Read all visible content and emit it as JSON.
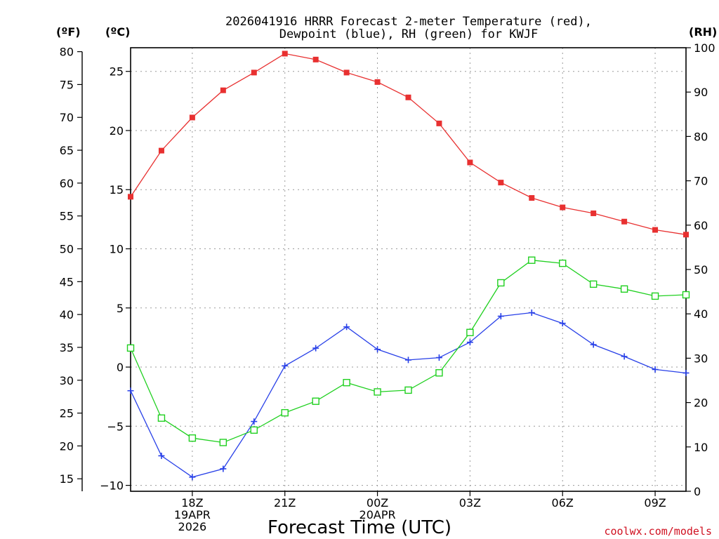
{
  "chart_data": {
    "type": "line",
    "title_line1": "2026041916 HRRR Forecast 2-meter Temperature (red),",
    "title_line2": "Dewpoint (blue), RH (green) for KWJF",
    "units": {
      "fahrenheit": "(ºF)",
      "celsius": "(ºC)",
      "rh": "(RH)"
    },
    "xlabel": "Forecast Time (UTC)",
    "credit": "coolwx.com/models",
    "hours": [
      16,
      17,
      18,
      19,
      20,
      21,
      22,
      23,
      24,
      25,
      26,
      27,
      28,
      29,
      30,
      31,
      32,
      33,
      34
    ],
    "x_ticks": [
      {
        "hour": 18,
        "lines": [
          "18Z",
          "19APR",
          "2026"
        ]
      },
      {
        "hour": 21,
        "lines": [
          "21Z"
        ]
      },
      {
        "hour": 24,
        "lines": [
          "00Z",
          "20APR"
        ]
      },
      {
        "hour": 27,
        "lines": [
          "03Z"
        ]
      },
      {
        "hour": 30,
        "lines": [
          "06Z"
        ]
      },
      {
        "hour": 33,
        "lines": [
          "09Z"
        ]
      }
    ],
    "celsius_range": [
      -10.5,
      27.0
    ],
    "celsius_ticks": [
      -10,
      -5,
      0,
      5,
      10,
      15,
      20,
      25
    ],
    "fahrenheit_ticks": [
      15,
      20,
      25,
      30,
      35,
      40,
      45,
      50,
      55,
      60,
      65,
      70,
      75,
      80
    ],
    "rh_range": [
      0,
      100
    ],
    "rh_ticks": [
      0,
      10,
      20,
      30,
      40,
      50,
      60,
      70,
      80,
      90,
      100
    ],
    "series": [
      {
        "name": "Temperature",
        "axis": "celsius",
        "color": "#e83030",
        "marker": "filled-square",
        "values": [
          14.4,
          18.3,
          21.1,
          23.4,
          24.9,
          26.5,
          26.0,
          24.9,
          24.1,
          22.8,
          20.6,
          17.3,
          15.6,
          14.3,
          13.5,
          13.0,
          12.3,
          11.6,
          11.2
        ]
      },
      {
        "name": "Dewpoint",
        "axis": "celsius",
        "color": "#2840e8",
        "marker": "plus",
        "values": [
          -2.0,
          -7.5,
          -9.3,
          -8.6,
          -4.6,
          0.1,
          1.6,
          3.4,
          1.5,
          0.6,
          0.8,
          2.1,
          4.3,
          4.6,
          3.7,
          1.9,
          0.9,
          -0.2,
          -0.5
        ]
      },
      {
        "name": "RH",
        "axis": "rh",
        "color": "#20d020",
        "marker": "open-square",
        "values": [
          32.3,
          16.5,
          12.0,
          11.0,
          13.8,
          17.7,
          20.3,
          24.5,
          22.4,
          22.8,
          26.7,
          35.8,
          47.0,
          52.1,
          51.4,
          46.7,
          45.6,
          44.0,
          44.3
        ]
      }
    ]
  }
}
